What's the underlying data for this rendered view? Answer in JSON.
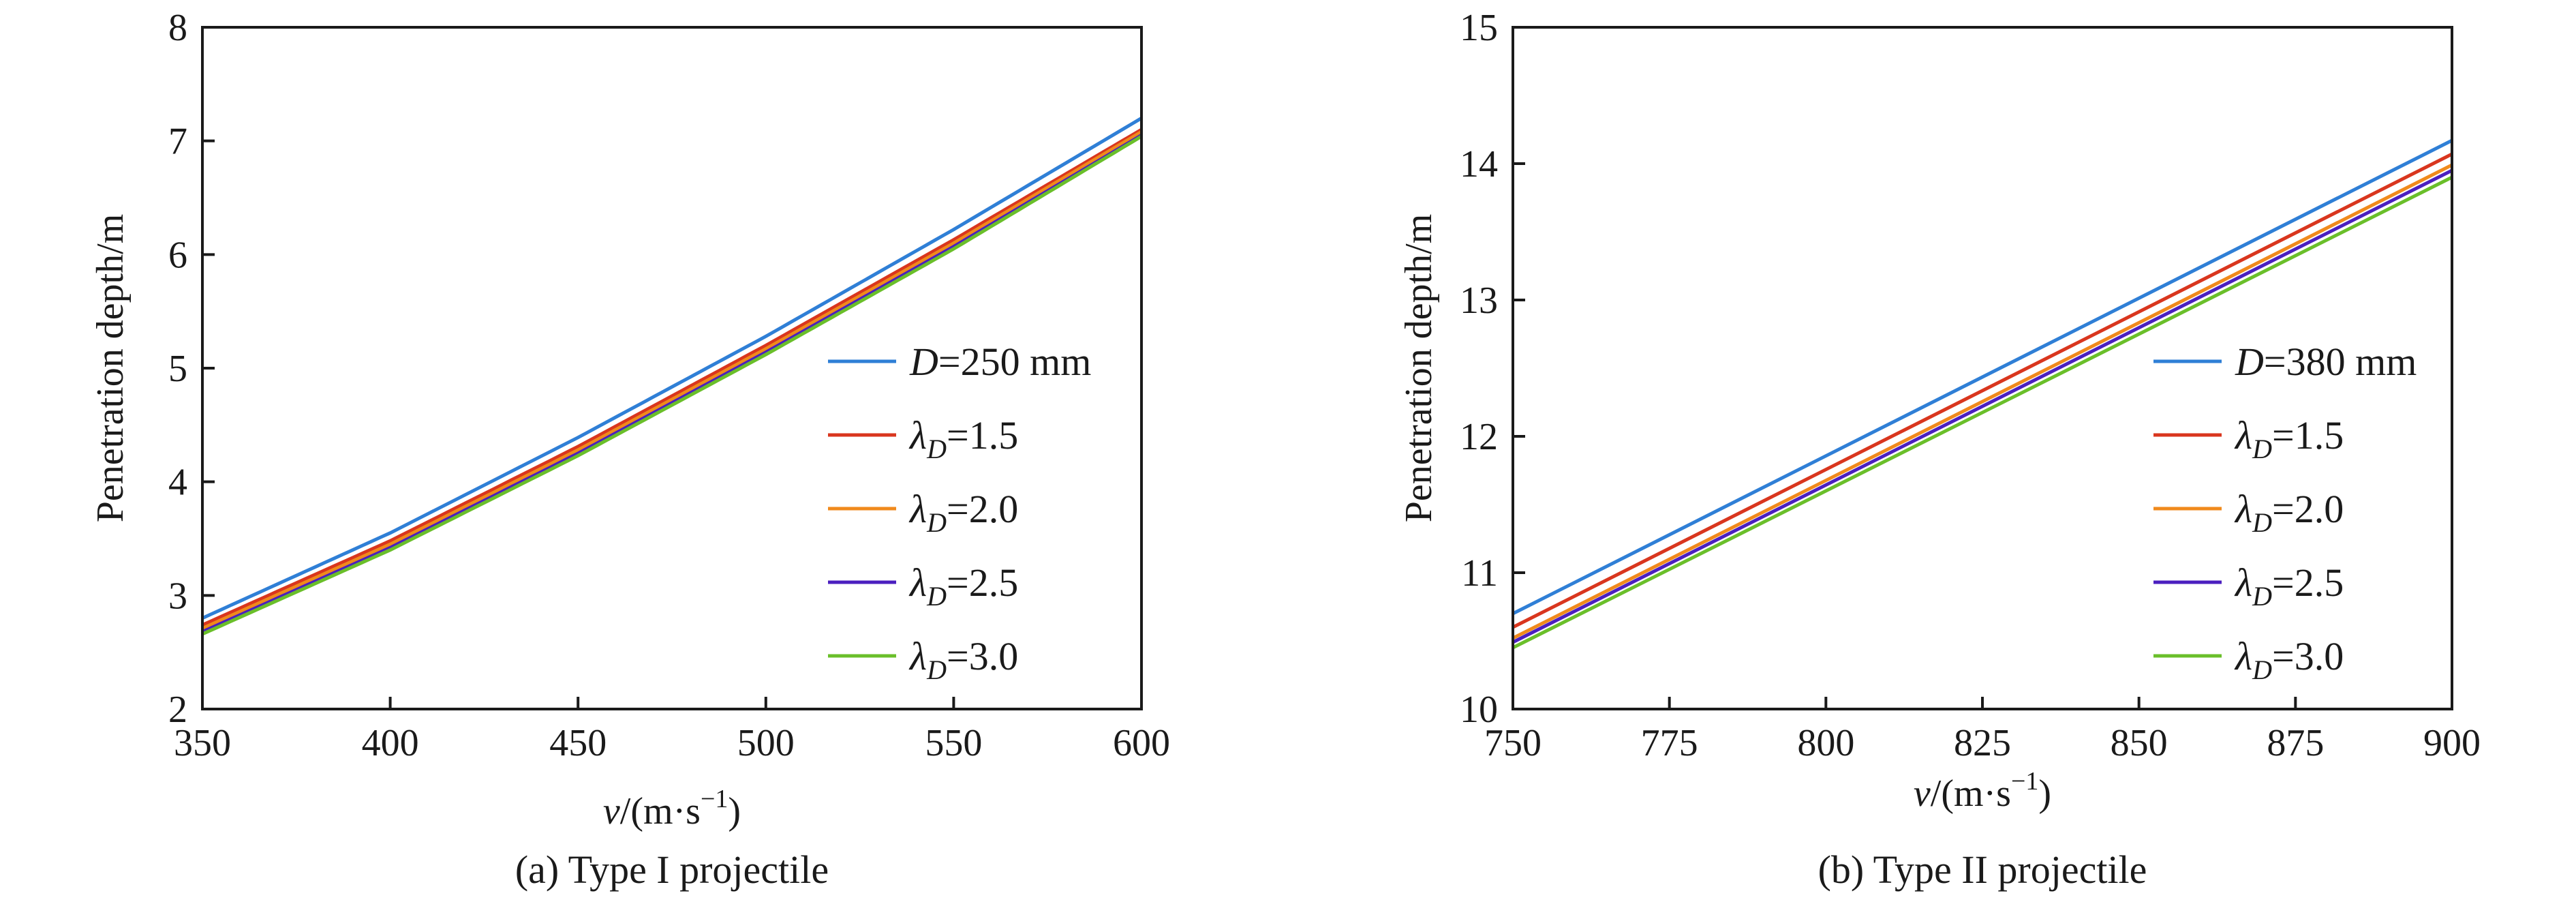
{
  "chart_data": [
    {
      "type": "line",
      "caption": "(a) Type I projectile",
      "xlabel": {
        "var": "v",
        "unit": "/(m·s",
        "exp": "−1",
        "close": ")"
      },
      "ylabel": "Penetration depth/m",
      "xlim": [
        350,
        600
      ],
      "ylim": [
        2,
        8
      ],
      "xticks": [
        "350",
        "400",
        "450",
        "500",
        "550",
        "600"
      ],
      "yticks": [
        "2",
        "3",
        "4",
        "5",
        "6",
        "7",
        "8"
      ],
      "legend_position": "right",
      "x": [
        350,
        400,
        450,
        500,
        550,
        600
      ],
      "series": [
        {
          "prefix": "D",
          "sub": "",
          "rest": "=250 mm",
          "color": "#2f7fd6",
          "values": [
            2.8,
            3.55,
            4.39,
            5.28,
            6.22,
            7.2
          ]
        },
        {
          "prefix": "λ",
          "sub": "D",
          "rest": "=1.5",
          "color": "#d9361e",
          "values": [
            2.74,
            3.48,
            4.31,
            5.2,
            6.13,
            7.1
          ]
        },
        {
          "prefix": "λ",
          "sub": "D",
          "rest": "=2.0",
          "color": "#f08a1c",
          "values": [
            2.71,
            3.45,
            4.28,
            5.17,
            6.1,
            7.08
          ]
        },
        {
          "prefix": "λ",
          "sub": "D",
          "rest": "=2.5",
          "color": "#4b1fbf",
          "values": [
            2.68,
            3.42,
            4.25,
            5.14,
            6.07,
            7.05
          ]
        },
        {
          "prefix": "λ",
          "sub": "D",
          "rest": "=3.0",
          "color": "#6abf2a",
          "values": [
            2.66,
            3.4,
            4.23,
            5.12,
            6.05,
            7.04
          ]
        }
      ]
    },
    {
      "type": "line",
      "caption": "(b) Type II projectile",
      "xlabel": {
        "var": "v",
        "unit": "/(m·s",
        "exp": "−1",
        "close": ")"
      },
      "ylabel": "Penetration depth/m",
      "xlim": [
        750,
        900
      ],
      "ylim": [
        10,
        15
      ],
      "xticks": [
        "750",
        "775",
        "800",
        "825",
        "850",
        "875",
        "900"
      ],
      "yticks": [
        "10",
        "11",
        "12",
        "13",
        "14",
        "15"
      ],
      "legend_position": "right",
      "x": [
        750,
        900
      ],
      "series": [
        {
          "prefix": "D",
          "sub": "",
          "rest": "=380 mm",
          "color": "#2f7fd6",
          "values": [
            10.7,
            14.17
          ]
        },
        {
          "prefix": "λ",
          "sub": "D",
          "rest": "=1.5",
          "color": "#d9361e",
          "values": [
            10.6,
            14.07
          ]
        },
        {
          "prefix": "λ",
          "sub": "D",
          "rest": "=2.0",
          "color": "#f08a1c",
          "values": [
            10.52,
            13.99
          ]
        },
        {
          "prefix": "λ",
          "sub": "D",
          "rest": "=2.5",
          "color": "#4b1fbf",
          "values": [
            10.49,
            13.95
          ]
        },
        {
          "prefix": "λ",
          "sub": "D",
          "rest": "=3.0",
          "color": "#6abf2a",
          "values": [
            10.45,
            13.9
          ]
        }
      ]
    }
  ]
}
